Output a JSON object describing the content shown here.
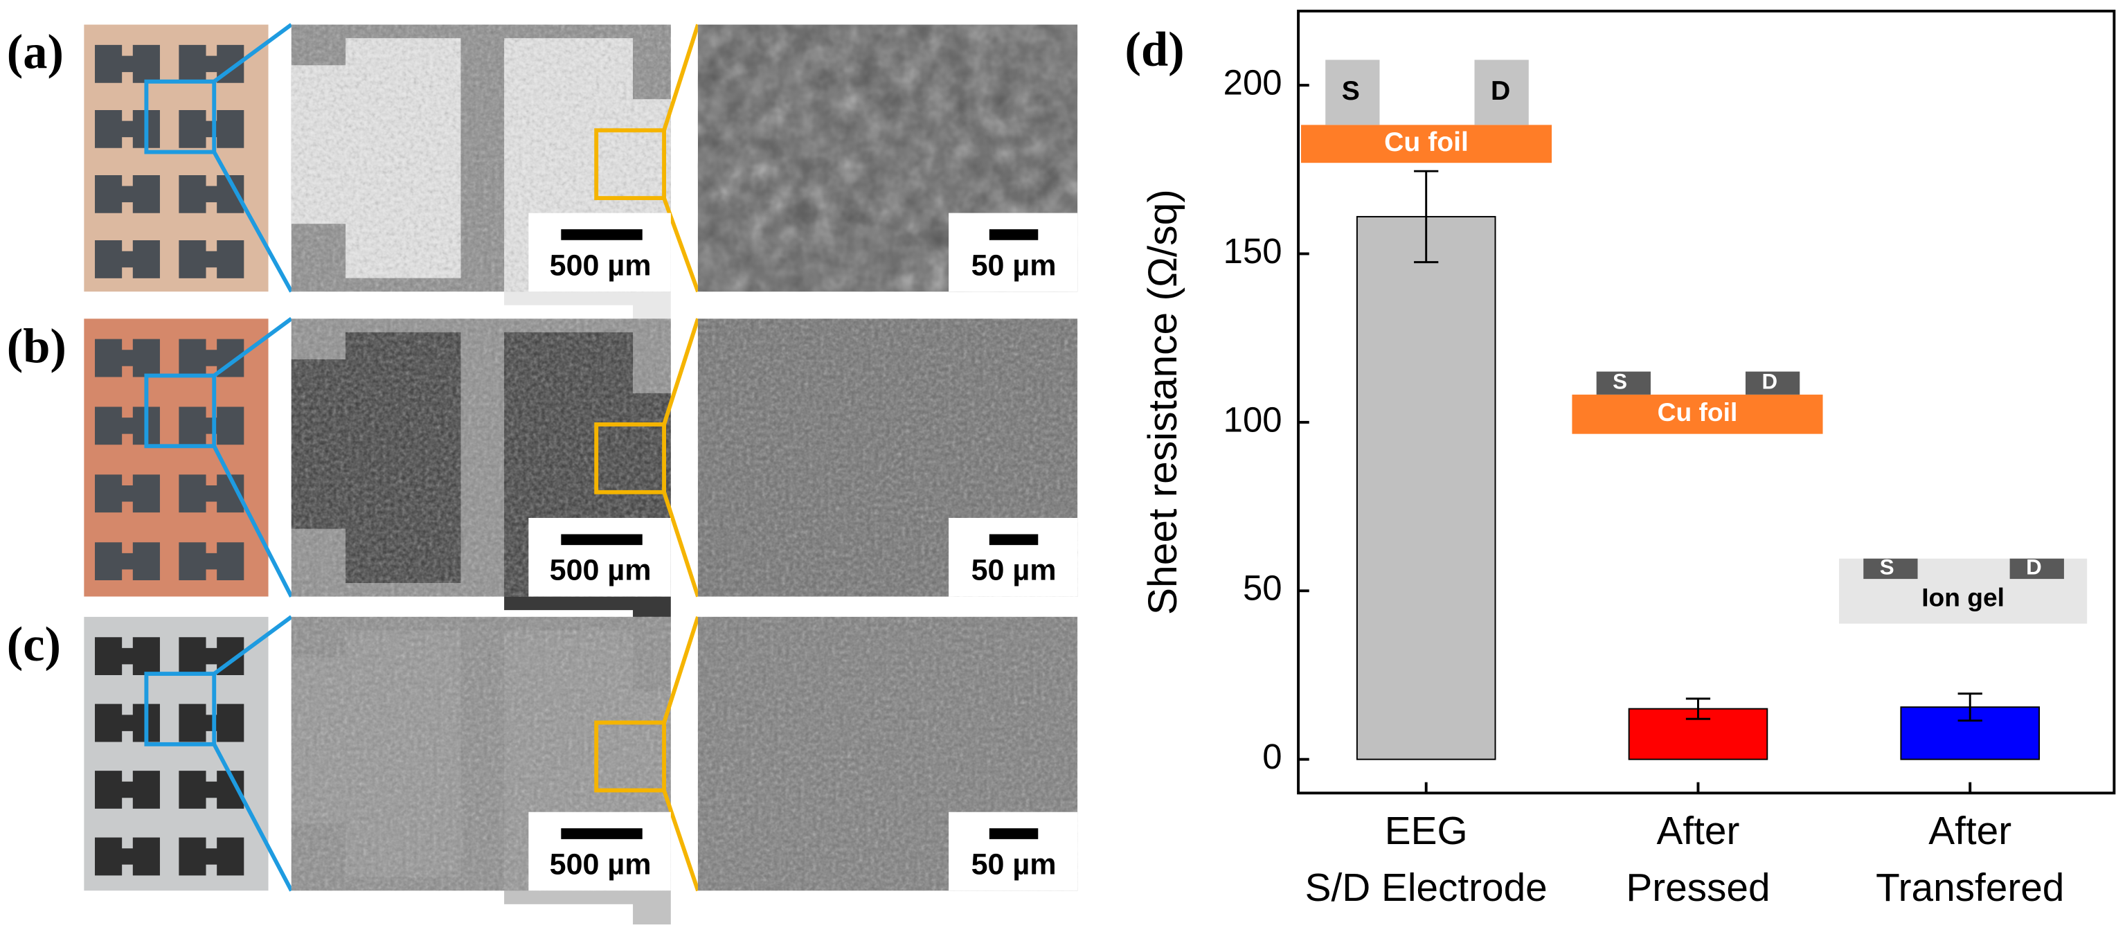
{
  "panels": [
    {
      "label": "(a)",
      "scale_bars": [
        "500 µm",
        "50 µm"
      ]
    },
    {
      "label": "(b)",
      "scale_bars": [
        "500 µm",
        "50 µm"
      ]
    },
    {
      "label": "(c)",
      "scale_bars": [
        "500 µm",
        "50 µm"
      ]
    }
  ],
  "chart_data": {
    "type": "bar",
    "label": "(d)",
    "ylabel": "Sheet resistance (Ω/sq)",
    "categories": [
      [
        "EEG",
        "S/D Electrode"
      ],
      [
        "After",
        "Pressed"
      ],
      [
        "After",
        "Transfered"
      ]
    ],
    "values": [
      161,
      15,
      15.5
    ],
    "errors": [
      13.5,
      3,
      4
    ],
    "colors": [
      "#c0c0c0",
      "#ff0000",
      "#0000ff"
    ],
    "ylim": [
      -10,
      222
    ],
    "yticks": [
      0,
      50,
      100,
      150,
      200
    ],
    "insets": [
      {
        "source": "S",
        "drain": "D",
        "substrate": "Cu foil"
      },
      {
        "source": "S",
        "drain": "D",
        "substrate": "Cu foil"
      },
      {
        "source": "S",
        "drain": "D",
        "substrate": "Ion gel"
      }
    ]
  }
}
